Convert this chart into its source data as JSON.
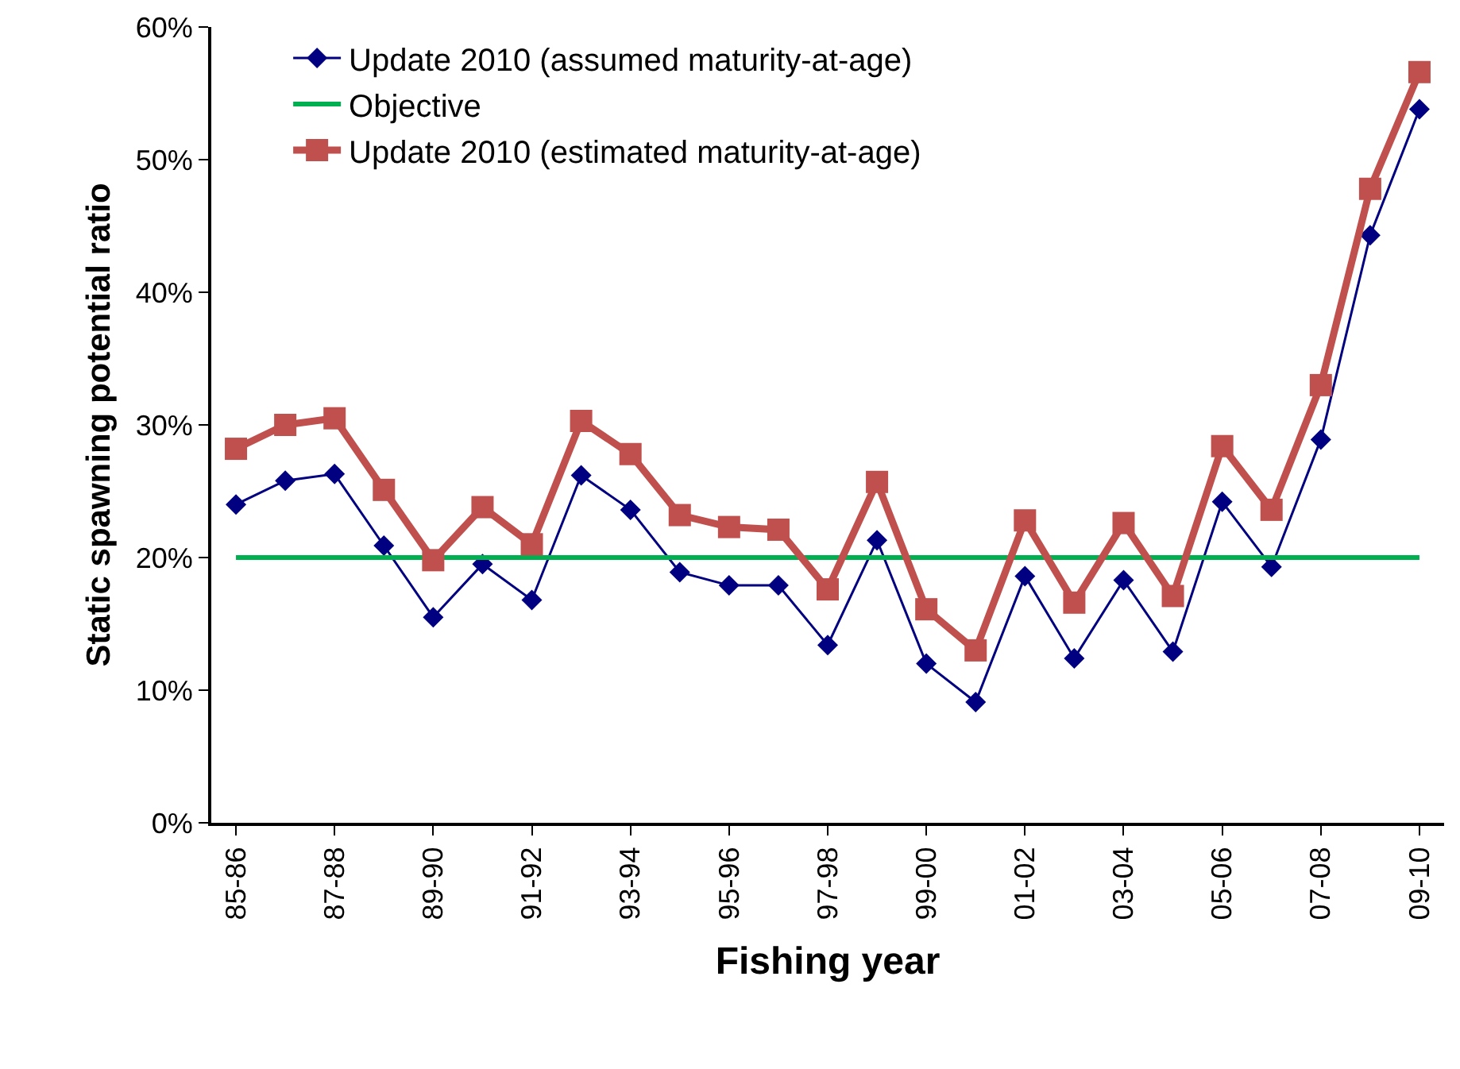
{
  "chart_data": {
    "type": "line",
    "xlabel": "Fishing year",
    "ylabel": "Static spawning potential ratio",
    "categories": [
      "85-86",
      null,
      "87-88",
      null,
      "89-90",
      null,
      "91-92",
      null,
      "93-94",
      null,
      "95-96",
      null,
      "97-98",
      null,
      "99-00",
      null,
      "01-02",
      null,
      "03-04",
      null,
      "05-06",
      null,
      "07-08",
      null,
      "09-10"
    ],
    "series": [
      {
        "name": "Update 2010 (assumed maturity-at-age)",
        "color": "#000080",
        "marker": "diamond",
        "values": [
          24.0,
          25.8,
          26.3,
          20.9,
          15.5,
          19.5,
          16.8,
          26.2,
          23.6,
          18.9,
          17.9,
          17.9,
          13.4,
          21.3,
          12.0,
          9.1,
          18.6,
          12.4,
          18.3,
          12.9,
          24.2,
          19.3,
          28.9,
          44.3,
          53.8
        ]
      },
      {
        "name": "Objective",
        "color": "#00b050",
        "marker": "none",
        "values": [
          20,
          20,
          20,
          20,
          20,
          20,
          20,
          20,
          20,
          20,
          20,
          20,
          20,
          20,
          20,
          20,
          20,
          20,
          20,
          20,
          20,
          20,
          20,
          20,
          20
        ]
      },
      {
        "name": "Update 2010 (estimated maturity-at-age)",
        "color": "#c0504d",
        "marker": "square",
        "values": [
          28.2,
          30.0,
          30.5,
          25.1,
          19.8,
          23.8,
          21.0,
          30.3,
          27.8,
          23.2,
          22.3,
          22.1,
          17.6,
          25.7,
          16.1,
          13.0,
          22.8,
          16.6,
          22.6,
          17.1,
          28.4,
          23.6,
          33.0,
          47.8,
          56.6
        ]
      }
    ],
    "ylim": [
      0,
      60
    ],
    "yticks": [
      {
        "value": 0,
        "label": "0%"
      },
      {
        "value": 10,
        "label": "10%"
      },
      {
        "value": 20,
        "label": "20%"
      },
      {
        "value": 30,
        "label": "30%"
      },
      {
        "value": 40,
        "label": "40%"
      },
      {
        "value": 50,
        "label": "50%"
      },
      {
        "value": 60,
        "label": "60%"
      }
    ],
    "grid": false,
    "legend": "top left",
    "line_style": "solid"
  }
}
